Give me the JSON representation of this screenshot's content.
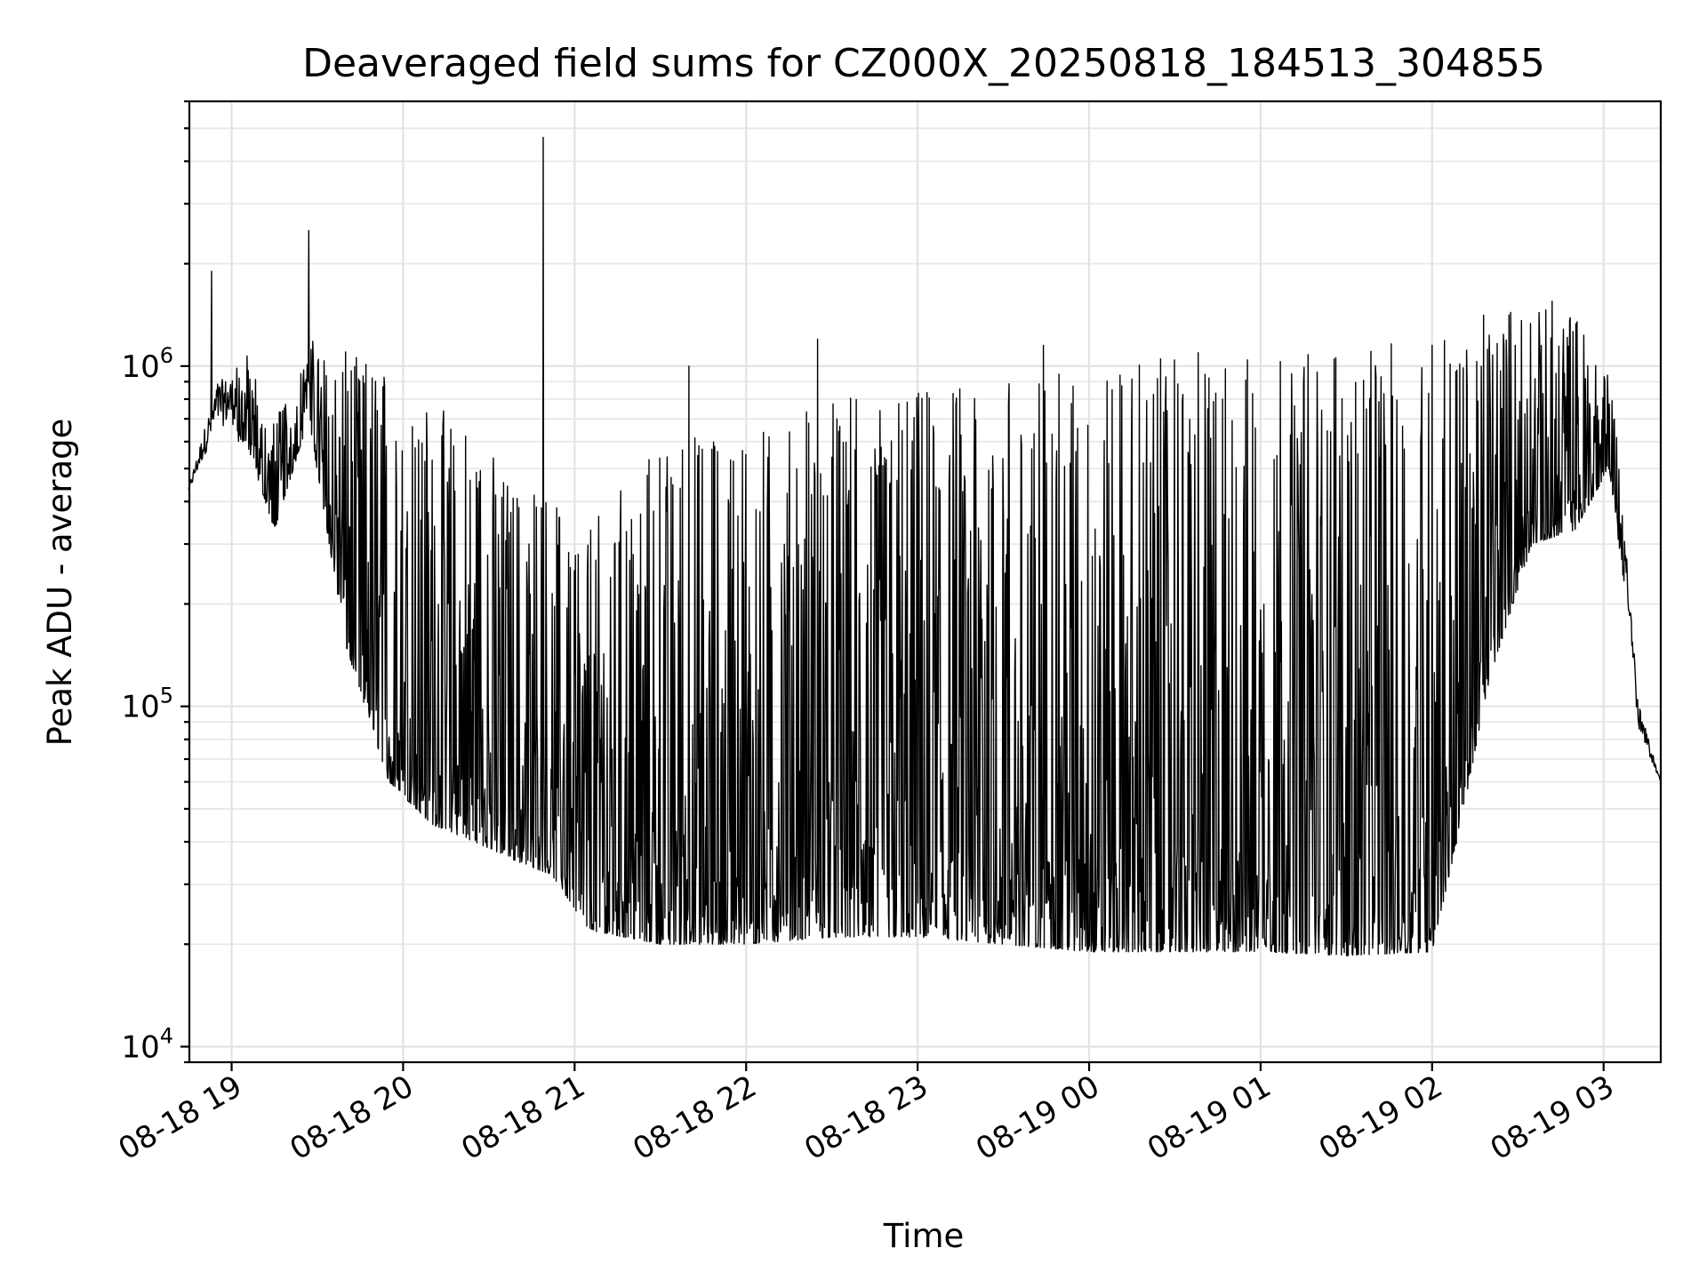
{
  "chart_data": {
    "type": "line",
    "title": "Deaveraged field sums for CZ000X_20250818_184513_304855",
    "xlabel": "Time",
    "ylabel": "Peak ADU - average",
    "yscale": "log",
    "grid": true,
    "line_color": "#000000",
    "xlim": [
      "2025-08-18 18:45:13",
      "2025-08-19 03:20:00"
    ],
    "ylim": [
      9000,
      6000000
    ],
    "x_ticks": [
      "08-18 19",
      "08-18 20",
      "08-18 21",
      "08-18 22",
      "08-18 23",
      "08-19 00",
      "08-19 01",
      "08-19 02",
      "08-19 03"
    ],
    "x_tick_times": [
      "2025-08-18 19:00",
      "2025-08-18 20:00",
      "2025-08-18 21:00",
      "2025-08-18 22:00",
      "2025-08-18 23:00",
      "2025-08-19 00:00",
      "2025-08-19 01:00",
      "2025-08-19 02:00",
      "2025-08-19 03:00"
    ],
    "y_ticks": [
      {
        "value": 10000,
        "base": "10",
        "exp": "4"
      },
      {
        "value": 100000,
        "base": "10",
        "exp": "5"
      },
      {
        "value": 1000000,
        "base": "10",
        "exp": "6"
      }
    ],
    "envelope": {
      "x": [
        "2025-08-18 18:45",
        "2025-08-18 18:55",
        "2025-08-18 19:05",
        "2025-08-18 19:15",
        "2025-08-18 19:27",
        "2025-08-18 19:40",
        "2025-08-18 19:55",
        "2025-08-18 20:10",
        "2025-08-18 20:25",
        "2025-08-18 20:40",
        "2025-08-18 20:52",
        "2025-08-18 21:05",
        "2025-08-18 21:30",
        "2025-08-18 22:00",
        "2025-08-18 22:30",
        "2025-08-18 23:00",
        "2025-08-18 23:30",
        "2025-08-19 00:00",
        "2025-08-19 00:30",
        "2025-08-19 01:00",
        "2025-08-19 01:30",
        "2025-08-19 02:00",
        "2025-08-19 02:10",
        "2025-08-19 02:20",
        "2025-08-19 02:35",
        "2025-08-19 02:50",
        "2025-08-19 03:02",
        "2025-08-19 03:08",
        "2025-08-19 03:12",
        "2025-08-19 03:20"
      ],
      "high": [
        450000,
        1000000,
        1100000,
        700000,
        1200000,
        1100000,
        1000000,
        800000,
        650000,
        450000,
        420000,
        380000,
        600000,
        700000,
        800000,
        850000,
        950000,
        950000,
        1100000,
        1100000,
        1150000,
        1200000,
        1300000,
        1450000,
        1500000,
        1450000,
        1000000,
        350000,
        110000,
        60000
      ],
      "low": [
        420000,
        600000,
        600000,
        330000,
        700000,
        150000,
        60000,
        45000,
        40000,
        35000,
        32000,
        22000,
        20000,
        20000,
        21000,
        21000,
        20000,
        19000,
        19000,
        19000,
        18500,
        19000,
        45000,
        120000,
        300000,
        330000,
        500000,
        200000,
        80000,
        60000
      ]
    },
    "spikes": [
      {
        "x": "2025-08-18 18:53",
        "y": 1900000
      },
      {
        "x": "2025-08-18 19:27",
        "y": 2500000
      },
      {
        "x": "2025-08-18 20:49",
        "y": 4700000
      },
      {
        "x": "2025-08-18 21:40",
        "y": 1000000
      },
      {
        "x": "2025-08-18 22:25",
        "y": 1200000
      },
      {
        "x": "2025-08-18 23:44",
        "y": 1150000
      },
      {
        "x": "2025-08-19 00:25",
        "y": 1050000
      },
      {
        "x": "2025-08-19 02:00",
        "y": 1150000
      },
      {
        "x": "2025-08-19 02:42",
        "y": 1550000
      }
    ]
  }
}
